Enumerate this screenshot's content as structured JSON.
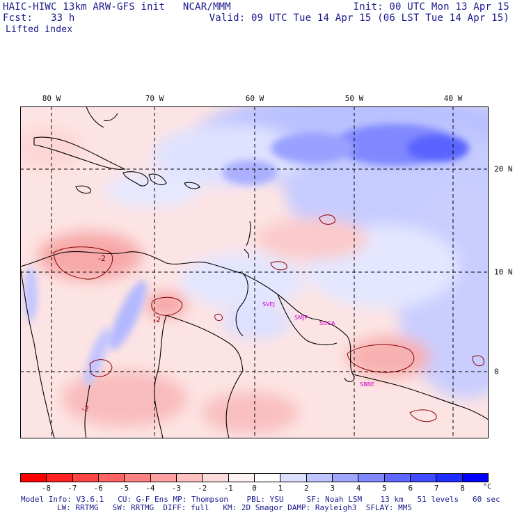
{
  "header": {
    "title": "HAIC-HIWC 13km ARW-GFS init   NCAR/MMM",
    "forecast": "Fcst:   33 h",
    "field": "Lifted index",
    "init": "Init: 00 UTC Mon 13 Apr 15",
    "valid": "Valid: 09 UTC Tue 14 Apr 15 (06 LST Tue 14 Apr 15)"
  },
  "map": {
    "lon_labels": [
      "80 W",
      "70 W",
      "60 W",
      "50 W",
      "40 W"
    ],
    "lat_labels": [
      "20 N",
      "10 N",
      "0"
    ],
    "stations": [
      "SVEJ",
      "SMJP",
      "SOCA",
      "SBBE"
    ],
    "contour_labels": [
      "-2",
      "-2",
      "-2"
    ],
    "grid_style": "dashed black",
    "colors": {
      "land_outline": "#000000",
      "contour": "#8b0000",
      "station_label": "#cc00cc"
    }
  },
  "colorbar": {
    "ticks": [
      "-8",
      "-7",
      "-6",
      "-5",
      "-4",
      "-3",
      "-2",
      "-1",
      "0",
      "1",
      "2",
      "3",
      "4",
      "5",
      "6",
      "7",
      "8"
    ],
    "unit": "°C",
    "colors": [
      "#ff0000",
      "#ff2222",
      "#ff4444",
      "#ff6363",
      "#ff8282",
      "#ffa1a1",
      "#ffc0c0",
      "#ffdcdc",
      "#fff2f2",
      "#ffffff",
      "#dde0ff",
      "#c0c4ff",
      "#a0a6ff",
      "#8087ff",
      "#6069ff",
      "#404bff",
      "#202dff",
      "#0000ff"
    ]
  },
  "footer": {
    "line1": "Model Info: V3.6.1   CU: G-F Ens MP: Thompson    PBL: YSU     SF: Noah LSM    13 km   51 levels   60 sec",
    "line2": "LW: RRTMG   SW: RRTMG  DIFF: full   KM: 2D Smagor DAMP: Rayleigh3  SFLAY: MM5"
  }
}
